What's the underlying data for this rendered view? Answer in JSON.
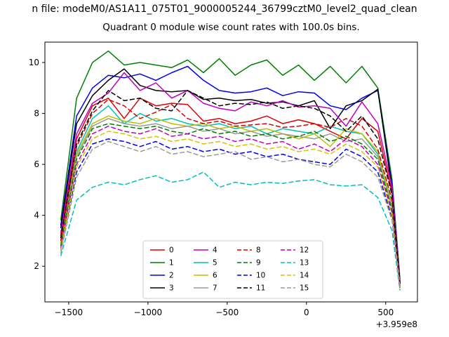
{
  "header": {
    "file_title": "n file: modeM0/AS1A11_075T01_9000005244_36799cztM0_level2_quad_clean"
  },
  "chart_data": {
    "type": "line",
    "title": "Quadrant 0 module wise count rates with 100.0s bins.",
    "xlabel": "",
    "ylabel": "",
    "x_axis_offset": "+3.959e8",
    "xlim": [
      -1650,
      700
    ],
    "ylim": [
      0.6,
      10.8
    ],
    "xticks": [
      -1500,
      -1000,
      -500,
      0,
      500
    ],
    "yticks": [
      2,
      4,
      6,
      8,
      10
    ],
    "grid": false,
    "legend_position": "lower center",
    "legend_columns": 4,
    "x": [
      -1550,
      -1450,
      -1350,
      -1250,
      -1150,
      -1050,
      -950,
      -850,
      -750,
      -650,
      -550,
      -450,
      -350,
      -250,
      -150,
      -50,
      50,
      150,
      250,
      350,
      450,
      540,
      590
    ],
    "series": [
      {
        "name": "0",
        "color": "#e00000",
        "dash": false,
        "values": [
          3.2,
          7.0,
          8.3,
          8.6,
          7.8,
          8.6,
          8.3,
          8.4,
          8.35,
          7.7,
          7.8,
          7.6,
          7.7,
          7.9,
          7.6,
          7.75,
          7.6,
          7.3,
          7.0,
          7.8,
          7.3,
          4.9,
          1.3
        ]
      },
      {
        "name": "1",
        "color": "#008000",
        "dash": false,
        "values": [
          3.8,
          8.6,
          10.0,
          10.45,
          9.9,
          10.0,
          9.9,
          9.8,
          10.1,
          9.6,
          10.15,
          9.5,
          9.9,
          10.1,
          9.5,
          9.9,
          9.3,
          9.85,
          9.2,
          9.85,
          9.0,
          5.4,
          1.5
        ]
      },
      {
        "name": "2",
        "color": "#0000ee",
        "dash": false,
        "values": [
          3.6,
          7.9,
          9.0,
          9.5,
          9.4,
          9.55,
          9.3,
          9.6,
          9.85,
          9.3,
          8.9,
          8.8,
          8.85,
          9.0,
          8.7,
          8.85,
          8.8,
          8.3,
          8.15,
          8.6,
          8.9,
          5.2,
          1.4
        ]
      },
      {
        "name": "3",
        "color": "#000000",
        "dash": false,
        "values": [
          3.5,
          7.6,
          8.7,
          9.3,
          9.75,
          9.1,
          8.9,
          8.85,
          8.9,
          8.55,
          8.6,
          8.5,
          8.55,
          8.4,
          8.45,
          8.3,
          8.5,
          7.4,
          8.3,
          8.5,
          8.95,
          5.0,
          1.35
        ]
      },
      {
        "name": "4",
        "color": "#bf00bf",
        "dash": false,
        "values": [
          3.3,
          7.2,
          8.4,
          8.8,
          9.6,
          8.9,
          9.2,
          8.6,
          8.9,
          8.4,
          8.2,
          8.1,
          8.45,
          8.3,
          8.5,
          8.25,
          8.3,
          8.2,
          7.5,
          8.45,
          7.6,
          5.1,
          1.3
        ]
      },
      {
        "name": "5",
        "color": "#00bfbf",
        "dash": false,
        "values": [
          2.9,
          6.5,
          7.8,
          8.3,
          7.6,
          8.0,
          7.7,
          7.8,
          7.6,
          7.5,
          7.6,
          7.4,
          7.5,
          7.2,
          7.4,
          7.3,
          7.2,
          7.5,
          7.3,
          7.2,
          6.4,
          4.5,
          1.2
        ]
      },
      {
        "name": "6",
        "color": "#bfbf00",
        "dash": false,
        "values": [
          2.9,
          6.4,
          7.6,
          7.9,
          7.7,
          7.6,
          7.8,
          7.6,
          7.5,
          7.6,
          7.4,
          7.5,
          7.3,
          7.4,
          7.2,
          7.0,
          7.2,
          6.7,
          7.4,
          7.2,
          6.5,
          4.4,
          1.2
        ]
      },
      {
        "name": "7",
        "color": "#9a9a9a",
        "dash": false,
        "values": [
          2.8,
          6.3,
          7.5,
          7.8,
          7.6,
          7.5,
          7.6,
          7.4,
          7.5,
          7.3,
          7.4,
          7.2,
          7.3,
          7.1,
          7.2,
          7.1,
          7.0,
          7.2,
          6.9,
          7.0,
          6.3,
          4.3,
          1.2
        ]
      },
      {
        "name": "8",
        "color": "#e00000",
        "dash": true,
        "values": [
          3.0,
          6.7,
          8.0,
          8.55,
          8.3,
          7.8,
          8.05,
          8.35,
          7.8,
          7.6,
          7.7,
          7.5,
          7.55,
          7.6,
          7.45,
          7.5,
          7.6,
          7.45,
          7.8,
          7.5,
          6.6,
          4.6,
          1.25
        ]
      },
      {
        "name": "9",
        "color": "#008000",
        "dash": true,
        "values": [
          2.8,
          6.2,
          7.4,
          7.6,
          7.5,
          7.4,
          7.5,
          7.3,
          7.2,
          7.4,
          7.2,
          7.3,
          7.1,
          7.2,
          7.0,
          7.1,
          7.3,
          6.9,
          7.1,
          6.8,
          6.2,
          4.2,
          1.2
        ]
      },
      {
        "name": "10",
        "color": "#0000ee",
        "dash": true,
        "values": [
          2.6,
          5.7,
          6.8,
          7.0,
          6.9,
          6.7,
          6.9,
          6.6,
          6.7,
          6.5,
          6.6,
          6.4,
          6.5,
          6.3,
          6.4,
          6.2,
          6.1,
          6.0,
          6.6,
          6.3,
          5.7,
          3.9,
          1.1
        ]
      },
      {
        "name": "11",
        "color": "#000000",
        "dash": true,
        "values": [
          3.1,
          6.8,
          8.1,
          8.9,
          8.5,
          8.6,
          8.2,
          8.1,
          8.9,
          8.6,
          8.3,
          8.4,
          8.35,
          8.45,
          8.2,
          8.3,
          8.2,
          7.9,
          7.3,
          7.9,
          7.0,
          4.8,
          1.3
        ]
      },
      {
        "name": "12",
        "color": "#bf00bf",
        "dash": true,
        "values": [
          2.7,
          6.0,
          7.2,
          7.5,
          7.3,
          7.2,
          7.4,
          7.1,
          7.2,
          7.0,
          7.1,
          6.9,
          7.0,
          6.8,
          6.9,
          6.6,
          6.8,
          6.5,
          7.0,
          6.7,
          6.0,
          4.1,
          1.15
        ]
      },
      {
        "name": "13",
        "color": "#00bfbf",
        "dash": true,
        "values": [
          2.4,
          4.6,
          5.1,
          5.3,
          5.2,
          5.4,
          5.55,
          5.3,
          5.4,
          5.7,
          5.1,
          5.3,
          5.2,
          5.3,
          5.25,
          5.35,
          5.4,
          5.2,
          5.15,
          5.2,
          4.7,
          3.4,
          1.05
        ]
      },
      {
        "name": "14",
        "color": "#d6c400",
        "dash": true,
        "values": [
          2.6,
          5.9,
          7.0,
          7.3,
          7.2,
          7.0,
          7.1,
          6.9,
          7.0,
          6.8,
          6.9,
          6.7,
          6.8,
          6.6,
          6.7,
          6.5,
          6.6,
          6.4,
          6.8,
          6.5,
          5.9,
          4.0,
          1.15
        ]
      },
      {
        "name": "15",
        "color": "#9a9a9a",
        "dash": true,
        "values": [
          2.5,
          5.5,
          6.6,
          6.9,
          6.7,
          6.5,
          6.7,
          6.4,
          6.5,
          6.3,
          6.4,
          6.5,
          6.2,
          6.3,
          6.1,
          6.2,
          6.0,
          5.9,
          6.4,
          6.1,
          5.5,
          3.8,
          1.1
        ]
      }
    ]
  }
}
